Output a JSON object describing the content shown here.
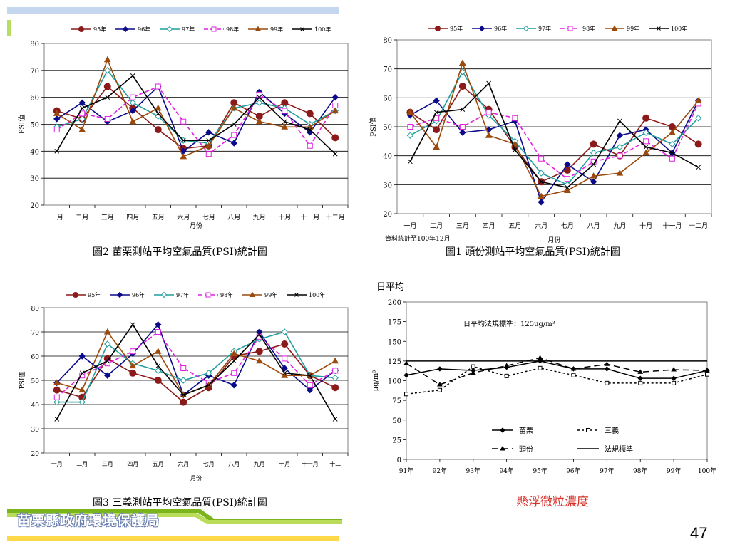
{
  "page_number": "47",
  "footer_text": "苗栗縣政府環境保護局",
  "colors": {
    "brand_green": "#7ab51d",
    "brand_yellow": "#ffd84a",
    "top_bar": "#c5d7ee",
    "title_red": "#d8312b"
  },
  "chart_data": [
    {
      "type": "line",
      "title": "圖2 苗栗測站平均空氣品質(PSI)統計圖",
      "xlabel": "月份",
      "ylabel": "PSI值",
      "ylim": [
        20,
        80
      ],
      "yticks": [
        20,
        30,
        40,
        50,
        60,
        70,
        80
      ],
      "grid": true,
      "legend": "top",
      "categories": [
        "一月",
        "二月",
        "三月",
        "四月",
        "五月",
        "六月",
        "七月",
        "八月",
        "九月",
        "十月",
        "十一月",
        "十二月"
      ],
      "series": [
        {
          "name": "95年",
          "color": "#8b1a1a",
          "marker": "circle",
          "values": [
            55,
            52,
            64,
            56,
            48,
            41,
            42,
            58,
            53,
            58,
            54,
            45
          ]
        },
        {
          "name": "96年",
          "color": "#0a0a8a",
          "marker": "diamond",
          "values": [
            52,
            58,
            51,
            55,
            64,
            40,
            47,
            43,
            62,
            54,
            47,
            60
          ]
        },
        {
          "name": "97年",
          "color": "#229e9e",
          "marker": "odiamond",
          "values": [
            49,
            52,
            70,
            58,
            53,
            44,
            43,
            56,
            58,
            56,
            50,
            55
          ]
        },
        {
          "name": "98年",
          "color": "#e020e0",
          "marker": "square",
          "dash": "6,3",
          "values": [
            48,
            54,
            52,
            60,
            64,
            51,
            39,
            46,
            61,
            55,
            42,
            57
          ]
        },
        {
          "name": "99年",
          "color": "#9b4a0c",
          "marker": "triangle",
          "values": [
            54,
            48,
            74,
            51,
            56,
            38,
            42,
            56,
            51,
            49,
            49,
            55
          ]
        },
        {
          "name": "100年",
          "color": "#000000",
          "marker": "x",
          "values": [
            40,
            56,
            60,
            68,
            54,
            44,
            44,
            50,
            60,
            51,
            48,
            39
          ]
        }
      ]
    },
    {
      "type": "line",
      "title": "圖1 頭份測站平均空氣品質(PSI)統計圖",
      "note": "資料統計至100年12月",
      "xlabel": "月份",
      "ylabel": "PSI值",
      "ylim": [
        20,
        80
      ],
      "yticks": [
        20,
        30,
        40,
        50,
        60,
        70,
        80
      ],
      "grid": true,
      "legend": "top",
      "categories": [
        "一月",
        "二月",
        "三月",
        "四月",
        "五月",
        "六月",
        "七月",
        "八月",
        "九月",
        "十月",
        "十一月",
        "十二月"
      ],
      "series": [
        {
          "name": "95年",
          "color": "#8b1a1a",
          "marker": "circle",
          "values": [
            55,
            49,
            64,
            56,
            43,
            31,
            35,
            44,
            40,
            53,
            50,
            44
          ]
        },
        {
          "name": "96年",
          "color": "#0a0a8a",
          "marker": "diamond",
          "values": [
            54,
            59,
            48,
            49,
            52,
            24,
            37,
            31,
            47,
            49,
            41,
            59
          ]
        },
        {
          "name": "97年",
          "color": "#229e9e",
          "marker": "odiamond",
          "values": [
            47,
            52,
            69,
            54,
            45,
            34,
            30,
            41,
            43,
            48,
            44,
            53
          ]
        },
        {
          "name": "98年",
          "color": "#e020e0",
          "marker": "square",
          "dash": "6,3",
          "values": [
            50,
            53,
            50,
            55,
            53,
            39,
            32,
            38,
            40,
            45,
            39,
            58
          ]
        },
        {
          "name": "99年",
          "color": "#9b4a0c",
          "marker": "triangle",
          "values": [
            55,
            43,
            72,
            47,
            44,
            26,
            28,
            33,
            34,
            41,
            48,
            59
          ]
        },
        {
          "name": "100年",
          "color": "#000000",
          "marker": "x",
          "values": [
            38,
            55,
            56,
            65,
            42,
            31,
            29,
            37,
            52,
            43,
            41,
            36
          ]
        }
      ]
    },
    {
      "type": "line",
      "title": "圖3 三義測站平均空氣品質(PSI)統計圖",
      "xlabel": "月份",
      "ylabel": "PSI值",
      "ylim": [
        20,
        80
      ],
      "yticks": [
        20,
        30,
        40,
        50,
        60,
        70,
        80
      ],
      "grid": true,
      "legend": "top",
      "categories": [
        "一月",
        "二月",
        "三月",
        "四月",
        "五月",
        "六月",
        "七月",
        "八月",
        "九月",
        "十月",
        "十一月",
        "十二"
      ],
      "series": [
        {
          "name": "95年",
          "color": "#8b1a1a",
          "marker": "circle",
          "values": [
            46,
            43,
            59,
            53,
            50,
            41,
            47,
            60,
            62,
            65,
            52,
            47
          ]
        },
        {
          "name": "96年",
          "color": "#0a0a8a",
          "marker": "diamond",
          "values": [
            49,
            60,
            52,
            61,
            73,
            44,
            52,
            48,
            70,
            55,
            46,
            54
          ]
        },
        {
          "name": "97年",
          "color": "#229e9e",
          "marker": "odiamond",
          "values": [
            41,
            41,
            65,
            57,
            54,
            50,
            53,
            62,
            67,
            70,
            52,
            51
          ]
        },
        {
          "name": "98年",
          "color": "#e020e0",
          "marker": "square",
          "dash": "6,3",
          "values": [
            43,
            52,
            57,
            62,
            70,
            55,
            49,
            53,
            68,
            59,
            48,
            54
          ]
        },
        {
          "name": "99年",
          "color": "#9b4a0c",
          "marker": "triangle",
          "values": [
            49,
            46,
            70,
            56,
            62,
            44,
            48,
            61,
            58,
            52,
            52,
            58
          ]
        },
        {
          "name": "100年",
          "color": "#000000",
          "marker": "x",
          "values": [
            34,
            53,
            58,
            73,
            56,
            44,
            48,
            58,
            69,
            53,
            52,
            34
          ]
        }
      ]
    },
    {
      "type": "line",
      "title": "懸浮微粒濃度",
      "ylabel_top": "日平均",
      "ylabel": "μg/m³",
      "annotation": "日平均法規標準：125ug/m³",
      "ylim": [
        0,
        200
      ],
      "yticks": [
        0,
        25,
        50,
        75,
        100,
        125,
        150,
        175,
        200
      ],
      "grid": false,
      "legend": "bottom-right",
      "categories": [
        "91年",
        "92年",
        "93年",
        "94年",
        "95年",
        "96年",
        "97年",
        "98年",
        "99年",
        "100年"
      ],
      "series": [
        {
          "name": "苗栗",
          "color": "#000000",
          "marker": "diamond",
          "dash": "",
          "values": [
            107,
            115,
            113,
            117,
            125,
            115,
            115,
            103,
            103,
            113
          ]
        },
        {
          "name": "三義",
          "color": "#000000",
          "marker": "square",
          "dash": "3,3",
          "values": [
            83,
            88,
            118,
            106,
            116,
            107,
            97,
            97,
            97,
            108
          ]
        },
        {
          "name": "頭份",
          "color": "#000000",
          "marker": "triangle",
          "dash": "9,5",
          "values": [
            122,
            95,
            110,
            119,
            129,
            115,
            121,
            111,
            114,
            113
          ]
        },
        {
          "name": "法規標準",
          "color": "#000000",
          "marker": "none",
          "dash": "",
          "values": [
            125,
            125,
            125,
            125,
            125,
            125,
            125,
            125,
            125,
            125
          ]
        }
      ]
    }
  ]
}
